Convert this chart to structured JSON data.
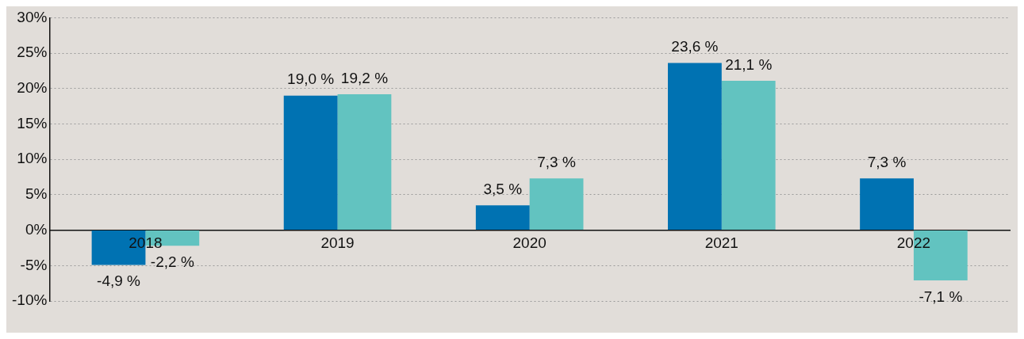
{
  "chart_data": {
    "type": "bar",
    "categories": [
      "2018",
      "2019",
      "2020",
      "2021",
      "2022"
    ],
    "series": [
      {
        "color": "#0072b2",
        "values": [
          -4.9,
          19.0,
          3.5,
          23.6,
          7.3
        ],
        "value_labels": [
          "-4,9 %",
          "19,0 %",
          "3,5 %",
          "23,6 %",
          "7,3 %"
        ]
      },
      {
        "color": "#62c3c0",
        "values": [
          -2.2,
          19.2,
          7.3,
          21.1,
          -7.1
        ],
        "value_labels": [
          "-2,2 %",
          "19,2 %",
          "7,3 %",
          "21,1 %",
          "-7,1 %"
        ]
      }
    ],
    "ylim": [
      -10,
      30
    ],
    "yticks": [
      {
        "value": -10,
        "label": "-10%"
      },
      {
        "value": -5,
        "label": "-5%"
      },
      {
        "value": 0,
        "label": "0%"
      },
      {
        "value": 5,
        "label": "5%"
      },
      {
        "value": 10,
        "label": "10%"
      },
      {
        "value": 15,
        "label": "15%"
      },
      {
        "value": 20,
        "label": "20%"
      },
      {
        "value": 25,
        "label": "25%"
      },
      {
        "value": 30,
        "label": "30%"
      }
    ],
    "grid": "y",
    "legend": false
  }
}
